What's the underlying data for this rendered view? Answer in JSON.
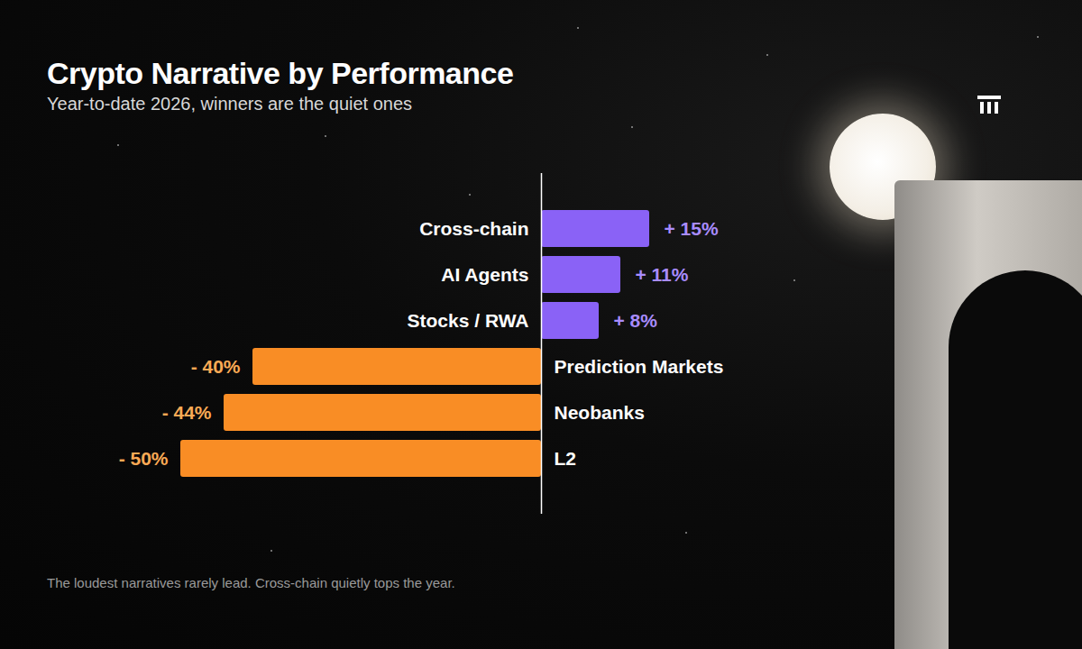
{
  "chart_data": {
    "type": "bar",
    "title": "Crypto Narrative by Performance",
    "subtitle": "Year-to-date 2026, winners are the quiet ones",
    "caption": "The loudest narratives rarely lead. Cross-chain quietly tops the year.",
    "orientation": "horizontal",
    "categories": [
      "Cross-chain",
      "AI Agents",
      "Stocks / RWA",
      "Prediction Markets",
      "Neobanks",
      "L2"
    ],
    "values": [
      15,
      11,
      8,
      -40,
      -44,
      -50
    ],
    "value_labels": [
      "+ 15%",
      "+ 11%",
      "+ 8%",
      "- 40%",
      "- 44%",
      "- 50%"
    ],
    "colors": [
      "#8a62f6",
      "#8a62f6",
      "#8a62f6",
      "#f98d25",
      "#f98d25",
      "#f98d25"
    ],
    "data_labels": true,
    "tick_labels": "y",
    "grid": false
  }
}
